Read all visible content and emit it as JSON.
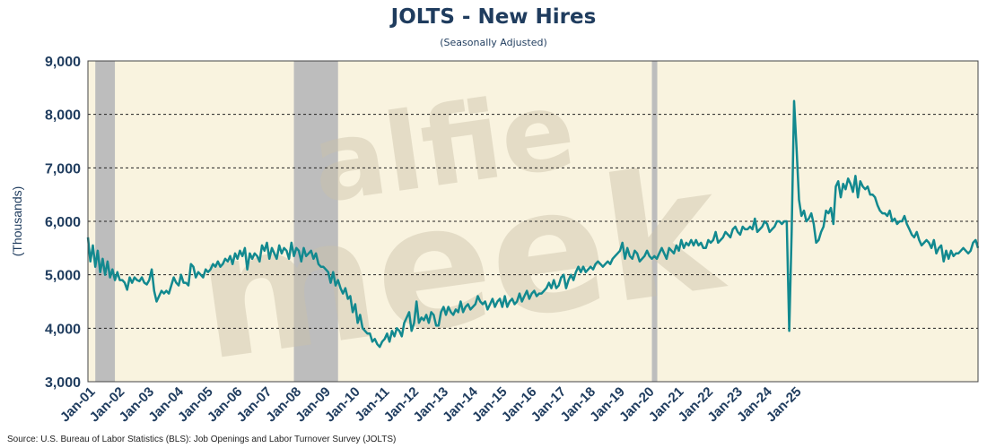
{
  "chart_data": {
    "type": "line",
    "title": "JOLTS - New Hires",
    "subtitle": "(Seasonally Adjusted)",
    "ylabel": "(Thousands)",
    "xlabel": "",
    "ylim": [
      3000,
      9000
    ],
    "yticks": [
      "3,000",
      "4,000",
      "5,000",
      "6,000",
      "7,000",
      "8,000",
      "9,000"
    ],
    "ytick_values": [
      3000,
      4000,
      5000,
      6000,
      7000,
      8000,
      9000
    ],
    "gridlines": [
      4000,
      5000,
      6000,
      7000,
      8000
    ],
    "xticks": [
      "Jan-01",
      "Jan-02",
      "Jan-03",
      "Jan-04",
      "Jan-05",
      "Jan-06",
      "Jan-07",
      "Jan-08",
      "Jan-09",
      "Jan-10",
      "Jan-11",
      "Jan-12",
      "Jan-13",
      "Jan-14",
      "Jan-15",
      "Jan-16",
      "Jan-17",
      "Jan-18",
      "Jan-19",
      "Jan-20",
      "Jan-21",
      "Jan-22",
      "Jan-23",
      "Jan-24",
      "Jan-25"
    ],
    "recessions": [
      [
        "2001-03",
        "2001-11"
      ],
      [
        "2007-12",
        "2009-06"
      ],
      [
        "2020-02",
        "2020-04"
      ]
    ],
    "watermark": [
      "alfie",
      "meek"
    ],
    "series": [
      {
        "color": "#12898f",
        "start": "2000-12",
        "values": [
          5700,
          5250,
          5550,
          5150,
          5450,
          5050,
          5300,
          5000,
          5250,
          4950,
          5100,
          4900,
          5050,
          4900,
          4900,
          4850,
          4720,
          4950,
          4850,
          4950,
          4900,
          4880,
          4950,
          4850,
          4820,
          4900,
          5100,
          4700,
          4500,
          4600,
          4700,
          4650,
          4700,
          4650,
          4800,
          4950,
          4850,
          4800,
          5000,
          4850,
          4850,
          4800,
          5200,
          5150,
          4950,
          5050,
          5000,
          4950,
          5100,
          5050,
          5100,
          5200,
          5150,
          5250,
          5150,
          5200,
          5300,
          5250,
          5350,
          5200,
          5400,
          5300,
          5450,
          5350,
          5500,
          5100,
          5400,
          5300,
          5400,
          5350,
          5250,
          5550,
          5450,
          5600,
          5300,
          5500,
          5400,
          5300,
          5550,
          5400,
          5500,
          5450,
          5300,
          5600,
          5350,
          5500,
          5450,
          5250,
          5500,
          5350,
          5400,
          5450,
          5300,
          5400,
          5200,
          5150,
          5150,
          5100,
          5050,
          4850,
          5050,
          4800,
          4900,
          4750,
          4650,
          4750,
          4550,
          4600,
          4300,
          4450,
          4100,
          4250,
          4000,
          3950,
          3900,
          3900,
          3750,
          3800,
          3700,
          3650,
          3750,
          3800,
          3900,
          3750,
          3950,
          3850,
          4000,
          3950,
          3850,
          4100,
          4200,
          4300,
          3950,
          4100,
          4500,
          4100,
          4200,
          4150,
          4250,
          4100,
          4300,
          4250,
          4050,
          4050,
          4300,
          4400,
          4250,
          4400,
          4300,
          4250,
          4350,
          4300,
          4500,
          4300,
          4400,
          4450,
          4350,
          4400,
          4450,
          4600,
          4500,
          4450,
          4500,
          4350,
          4450,
          4550,
          4400,
          4500,
          4550,
          4400,
          4600,
          4400,
          4500,
          4550,
          4450,
          4500,
          4650,
          4500,
          4600,
          4700,
          4550,
          4650,
          4700,
          4600,
          4650,
          4650,
          4700,
          4750,
          4850,
          4750,
          4900,
          4750,
          4800,
          4950,
          5000,
          4750,
          4900,
          5000,
          4900,
          5050,
          5150,
          5050,
          5150,
          5050,
          5100,
          5150,
          5100,
          5200,
          5250,
          5200,
          5150,
          5200,
          5250,
          5200,
          5300,
          5350,
          5400,
          5450,
          5600,
          5300,
          5500,
          5350,
          5300,
          5450,
          5400,
          5250,
          5300,
          5350,
          5450,
          5350,
          5300,
          5350,
          5300,
          5400,
          5500,
          5400,
          5300,
          5500,
          5450,
          5400,
          5550,
          5450,
          5650,
          5500,
          5600,
          5550,
          5650,
          5550,
          5650,
          5550,
          5600,
          5500,
          5500,
          5650,
          5600,
          5650,
          5800,
          5600,
          5650,
          5700,
          5800,
          5750,
          5700,
          5850,
          5900,
          5800,
          5750,
          5900,
          5850,
          5850,
          5900,
          5850,
          6050,
          5800,
          5850,
          5900,
          6000,
          5950,
          5800,
          5850,
          5900,
          6000,
          6000,
          5950,
          6000,
          6000,
          3950,
          5800,
          8250,
          7350,
          6400,
          6100,
          6200,
          6000,
          6050,
          6150,
          5950,
          5600,
          5650,
          5800,
          5900,
          6200,
          6150,
          6250,
          5950,
          6650,
          6750,
          6450,
          6700,
          6600,
          6800,
          6700,
          6550,
          6850,
          6450,
          6750,
          6650,
          6600,
          6650,
          6500,
          6500,
          6450,
          6300,
          6200,
          6150,
          6150,
          6100,
          6200,
          6000,
          6050,
          5950,
          6000,
          6000,
          6100,
          5950,
          5850,
          5750,
          5700,
          5800,
          5650,
          5550,
          5600,
          5650,
          5600,
          5500,
          5650,
          5400,
          5500,
          5550,
          5250,
          5450,
          5300,
          5450,
          5350,
          5400,
          5400,
          5450,
          5500,
          5450,
          5400,
          5450,
          5600,
          5650,
          5500
        ]
      }
    ],
    "source": "Source: U.S. Bureau of Labor Statistics (BLS): Job Openings and Labor Turnover Survey (JOLTS)"
  }
}
